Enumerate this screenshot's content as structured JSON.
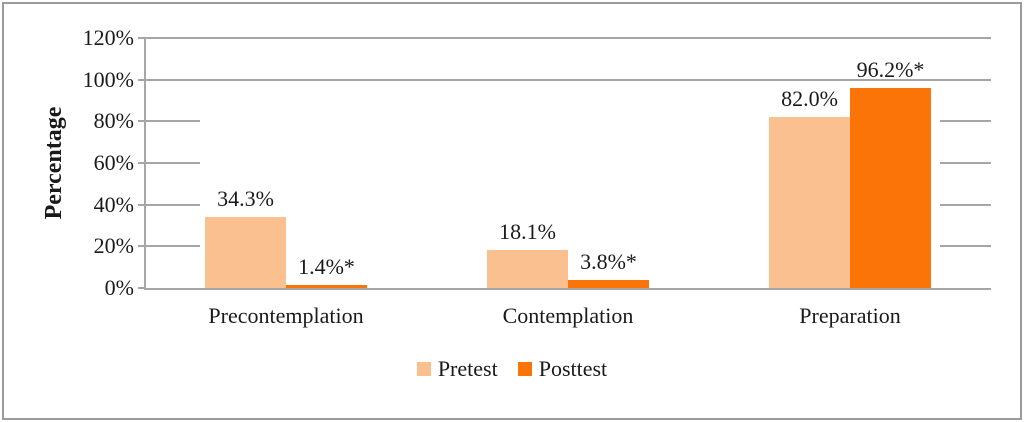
{
  "chart_data": {
    "type": "bar",
    "categories": [
      "Precontemplation",
      "Contemplation",
      "Preparation"
    ],
    "series": [
      {
        "name": "Pretest",
        "color": "#FAC090",
        "values": [
          34.3,
          18.1,
          82.0
        ],
        "labels": [
          "34.3%",
          "18.1%",
          "82.0%"
        ]
      },
      {
        "name": "Posttest",
        "color": "#FA7408",
        "values": [
          1.4,
          3.8,
          96.2
        ],
        "labels": [
          "1.4%*",
          "3.8%*",
          "96.2%*"
        ]
      }
    ],
    "xlabel": "",
    "ylabel": "Percentage",
    "ylim": [
      0,
      120
    ],
    "y_ticks": [
      0,
      20,
      40,
      60,
      80,
      100,
      120
    ],
    "y_tick_labels": [
      "0%",
      "20%",
      "40%",
      "60%",
      "80%",
      "100%",
      "120%"
    ],
    "grid": "full horizontal lines at 100% and 120%; short edge stubs at 20%, 40%, 60%, 80%",
    "legend_position": "bottom-center"
  },
  "colors": {
    "pretest_bar": "#FAC090",
    "posttest_bar": "#FA7408",
    "gridline": "#A6A6A6",
    "axis": "#A6A6A6",
    "figure_border": "#9C9C9C",
    "text": "#1A1A1A",
    "background": "#FFFFFF"
  }
}
